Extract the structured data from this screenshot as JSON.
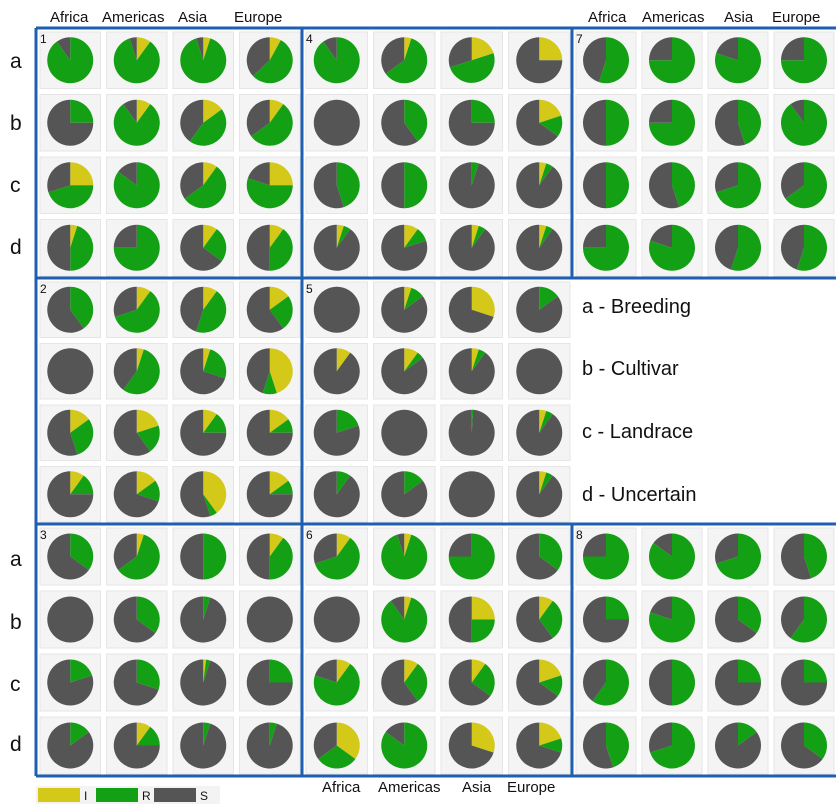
{
  "colors": {
    "I": "#d4c818",
    "R": "#14a014",
    "S": "#555555",
    "border": "#1f5fb0"
  },
  "column_headers": [
    "Africa",
    "Americas",
    "Asia",
    "Europe"
  ],
  "row_letters": [
    "a",
    "b",
    "c",
    "d"
  ],
  "legend_items": [
    {
      "letter": "a",
      "text": "a - Breeding"
    },
    {
      "letter": "b",
      "text": "b - Cultivar"
    },
    {
      "letter": "c",
      "text": "c - Landrace"
    },
    {
      "letter": "d",
      "text": "d - Uncertain"
    }
  ],
  "color_key": [
    {
      "key": "I",
      "label": "I"
    },
    {
      "key": "R",
      "label": "R"
    },
    {
      "key": "S",
      "label": "S"
    }
  ],
  "chart_data": {
    "type": "pie",
    "title": "",
    "categories": [
      "I",
      "R",
      "S"
    ],
    "regions": [
      "Africa",
      "Americas",
      "Asia",
      "Europe"
    ],
    "types": [
      "a",
      "b",
      "c",
      "d"
    ],
    "panels": [
      {
        "id": "1",
        "rows": [
          [
            [
              0,
              90,
              10
            ],
            [
              10,
              85,
              5
            ],
            [
              5,
              90,
              5
            ],
            [
              8,
              55,
              37
            ]
          ],
          [
            [
              0,
              25,
              75
            ],
            [
              10,
              80,
              10
            ],
            [
              15,
              45,
              40
            ],
            [
              10,
              55,
              35
            ]
          ],
          [
            [
              25,
              45,
              30
            ],
            [
              0,
              85,
              15
            ],
            [
              10,
              55,
              35
            ],
            [
              25,
              55,
              20
            ]
          ],
          [
            [
              5,
              45,
              50
            ],
            [
              0,
              75,
              25
            ],
            [
              10,
              25,
              65
            ],
            [
              10,
              40,
              50
            ]
          ]
        ]
      },
      {
        "id": "2",
        "rows": [
          [
            [
              0,
              40,
              60
            ],
            [
              10,
              60,
              30
            ],
            [
              10,
              45,
              45
            ],
            [
              15,
              25,
              60
            ]
          ],
          [
            [
              0,
              0,
              100
            ],
            [
              5,
              55,
              40
            ],
            [
              5,
              25,
              70
            ],
            [
              45,
              10,
              45
            ]
          ],
          [
            [
              15,
              30,
              55
            ],
            [
              20,
              20,
              60
            ],
            [
              10,
              15,
              75
            ],
            [
              15,
              10,
              75
            ]
          ],
          [
            [
              10,
              15,
              75
            ],
            [
              15,
              15,
              70
            ],
            [
              40,
              5,
              55
            ],
            [
              15,
              10,
              75
            ]
          ]
        ]
      },
      {
        "id": "3",
        "rows": [
          [
            [
              0,
              35,
              65
            ],
            [
              5,
              60,
              35
            ],
            [
              0,
              50,
              50
            ],
            [
              10,
              40,
              50
            ]
          ],
          [
            [
              0,
              0,
              100
            ],
            [
              0,
              35,
              65
            ],
            [
              0,
              5,
              95
            ],
            [
              0,
              0,
              100
            ]
          ],
          [
            [
              0,
              20,
              80
            ],
            [
              0,
              30,
              70
            ],
            [
              2,
              3,
              95
            ],
            [
              0,
              25,
              75
            ]
          ],
          [
            [
              0,
              15,
              85
            ],
            [
              10,
              15,
              75
            ],
            [
              0,
              5,
              95
            ],
            [
              0,
              5,
              95
            ]
          ]
        ]
      },
      {
        "id": "4",
        "rows": [
          [
            [
              0,
              90,
              10
            ],
            [
              5,
              60,
              35
            ],
            [
              20,
              50,
              30
            ],
            [
              25,
              0,
              75
            ]
          ],
          [
            [
              0,
              0,
              100
            ],
            [
              0,
              40,
              60
            ],
            [
              0,
              25,
              75
            ],
            [
              20,
              15,
              65
            ]
          ],
          [
            [
              0,
              45,
              55
            ],
            [
              0,
              50,
              50
            ],
            [
              0,
              5,
              95
            ],
            [
              5,
              5,
              90
            ]
          ],
          [
            [
              5,
              5,
              90
            ],
            [
              10,
              10,
              80
            ],
            [
              5,
              5,
              90
            ],
            [
              5,
              5,
              90
            ]
          ]
        ]
      },
      {
        "id": "5",
        "rows": [
          [
            [
              0,
              0,
              100
            ],
            [
              5,
              10,
              85
            ],
            [
              30,
              0,
              70
            ],
            [
              0,
              15,
              85
            ]
          ],
          [
            [
              10,
              0,
              90
            ],
            [
              10,
              5,
              85
            ],
            [
              5,
              5,
              90
            ],
            [
              0,
              0,
              100
            ]
          ],
          [
            [
              0,
              20,
              80
            ],
            [
              0,
              0,
              100
            ],
            [
              0,
              1,
              99
            ],
            [
              5,
              5,
              90
            ]
          ],
          [
            [
              0,
              10,
              90
            ],
            [
              0,
              15,
              85
            ],
            [
              0,
              0,
              100
            ],
            [
              5,
              5,
              90
            ]
          ]
        ]
      },
      {
        "id": "6",
        "rows": [
          [
            [
              10,
              60,
              30
            ],
            [
              5,
              90,
              5
            ],
            [
              0,
              75,
              25
            ],
            [
              0,
              35,
              65
            ]
          ],
          [
            [
              0,
              0,
              100
            ],
            [
              5,
              85,
              10
            ],
            [
              25,
              25,
              50
            ],
            [
              10,
              30,
              60
            ]
          ],
          [
            [
              10,
              70,
              20
            ],
            [
              10,
              30,
              60
            ],
            [
              10,
              25,
              65
            ],
            [
              20,
              15,
              65
            ]
          ],
          [
            [
              35,
              30,
              35
            ],
            [
              0,
              85,
              15
            ],
            [
              30,
              0,
              70
            ],
            [
              20,
              10,
              70
            ]
          ]
        ]
      },
      {
        "id": "7",
        "rows": [
          [
            [
              0,
              55,
              45
            ],
            [
              0,
              75,
              25
            ],
            [
              0,
              80,
              20
            ],
            [
              0,
              75,
              25
            ]
          ],
          [
            [
              0,
              50,
              50
            ],
            [
              0,
              75,
              25
            ],
            [
              0,
              45,
              55
            ],
            [
              0,
              90,
              10
            ]
          ],
          [
            [
              0,
              50,
              50
            ],
            [
              0,
              45,
              55
            ],
            [
              0,
              70,
              30
            ],
            [
              0,
              65,
              35
            ]
          ],
          [
            [
              0,
              75,
              25
            ],
            [
              0,
              80,
              20
            ],
            [
              0,
              55,
              45
            ],
            [
              0,
              55,
              45
            ]
          ]
        ]
      },
      {
        "id": "8",
        "rows": [
          [
            [
              0,
              75,
              25
            ],
            [
              0,
              85,
              15
            ],
            [
              0,
              70,
              30
            ],
            [
              0,
              45,
              55
            ]
          ],
          [
            [
              0,
              25,
              75
            ],
            [
              0,
              80,
              20
            ],
            [
              0,
              35,
              65
            ],
            [
              0,
              60,
              40
            ]
          ],
          [
            [
              0,
              60,
              40
            ],
            [
              0,
              50,
              50
            ],
            [
              0,
              25,
              75
            ],
            [
              0,
              25,
              75
            ]
          ],
          [
            [
              0,
              45,
              55
            ],
            [
              0,
              70,
              30
            ],
            [
              0,
              15,
              85
            ],
            [
              0,
              35,
              65
            ]
          ]
        ]
      }
    ]
  }
}
